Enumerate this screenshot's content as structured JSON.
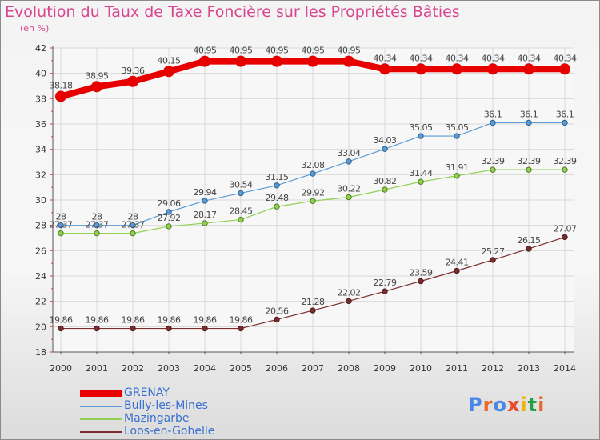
{
  "title": "Evolution du Taux de Taxe Foncière sur les Propriétés Bâties",
  "unit_label": "(en %)",
  "logo": {
    "letters": [
      "P",
      "r",
      "o",
      "x",
      "i",
      "t",
      "i"
    ],
    "colors": [
      "#4a86e8",
      "#e86a2a",
      "#4a86e8",
      "#e84a2a",
      "#f0b400",
      "#2a9d4a",
      "#e86a2a"
    ]
  },
  "chart_data": {
    "type": "line",
    "x": [
      "2000",
      "2001",
      "2002",
      "2003",
      "2004",
      "2005",
      "2006",
      "2007",
      "2008",
      "2009",
      "2010",
      "2011",
      "2012",
      "2013",
      "2014"
    ],
    "ylim": [
      18,
      42
    ],
    "yticks": [
      "18",
      "20",
      "22",
      "24",
      "26",
      "28",
      "30",
      "32",
      "34",
      "36",
      "38",
      "40",
      "42"
    ],
    "grid": true,
    "legend_position": "bottom-left",
    "series": [
      {
        "name": "GRENAY",
        "color": "#e80000",
        "values": [
          38.18,
          38.95,
          39.36,
          40.15,
          40.95,
          40.95,
          40.95,
          40.95,
          40.95,
          40.34,
          40.34,
          40.34,
          40.34,
          40.34,
          40.34
        ],
        "labels": [
          "38.18",
          "38.95",
          "39.36",
          "40.15",
          "40.95",
          "40.95",
          "40.95",
          "40.95",
          "40.95",
          "40.34",
          "40.34",
          "40.34",
          "40.34",
          "40.34",
          "40.34"
        ]
      },
      {
        "name": "Bully-les-Mines",
        "color": "#5b9bd5",
        "values": [
          28,
          28,
          28,
          29.06,
          29.94,
          30.54,
          31.15,
          32.08,
          33.04,
          34.03,
          35.05,
          35.05,
          36.1,
          36.1,
          36.1
        ],
        "labels": [
          "28",
          "28",
          "28",
          "29.06",
          "29.94",
          "30.54",
          "31.15",
          "32.08",
          "33.04",
          "34.03",
          "35.05",
          "35.05",
          "36.1",
          "36.1",
          "36.1"
        ]
      },
      {
        "name": "Mazingarbe",
        "color": "#92d050",
        "values": [
          27.37,
          27.37,
          27.37,
          27.92,
          28.17,
          28.45,
          29.48,
          29.92,
          30.22,
          30.82,
          31.44,
          31.91,
          32.39,
          32.39,
          32.39
        ],
        "labels": [
          "27.37",
          "27.37",
          "27.37",
          "27.92",
          "28.17",
          "28.45",
          "29.48",
          "29.92",
          "30.22",
          "30.82",
          "31.44",
          "31.91",
          "32.39",
          "32.39",
          "32.39"
        ]
      },
      {
        "name": "Loos-en-Gohelle",
        "color": "#7b2c2c",
        "values": [
          19.86,
          19.86,
          19.86,
          19.86,
          19.86,
          19.86,
          20.56,
          21.28,
          22.02,
          22.79,
          23.59,
          24.41,
          25.27,
          26.15,
          27.07
        ],
        "labels": [
          "19.86",
          "19.86",
          "19.86",
          "19.86",
          "19.86",
          "19.86",
          "20.56",
          "21.28",
          "22.02",
          "22.79",
          "23.59",
          "24.41",
          "25.27",
          "26.15",
          "27.07"
        ]
      }
    ]
  }
}
